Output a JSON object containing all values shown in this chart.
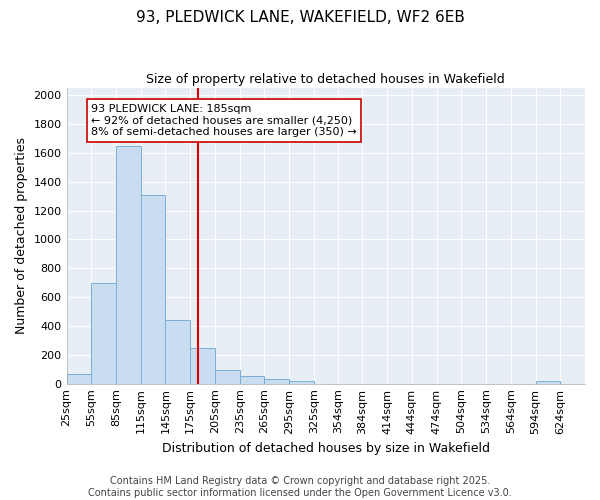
{
  "title_line1": "93, PLEDWICK LANE, WAKEFIELD, WF2 6EB",
  "title_line2": "Size of property relative to detached houses in Wakefield",
  "xlabel": "Distribution of detached houses by size in Wakefield",
  "ylabel": "Number of detached properties",
  "bar_color": "#c9ddf0",
  "bar_edge_color": "#7bafd4",
  "fig_background": "#ffffff",
  "plot_background": "#e8eef6",
  "grid_color": "#ffffff",
  "vline_x": 185,
  "vline_color": "#dd0000",
  "annotation_text": "93 PLEDWICK LANE: 185sqm\n← 92% of detached houses are smaller (4,250)\n8% of semi-detached houses are larger (350) →",
  "annotation_box_facecolor": "#ffffff",
  "annotation_box_edge": "#cc0000",
  "bins": [
    25,
    55,
    85,
    115,
    145,
    175,
    205,
    235,
    265,
    295,
    325,
    354,
    384,
    414,
    444,
    474,
    504,
    534,
    564,
    594,
    624
  ],
  "bin_labels": [
    "25sqm",
    "55sqm",
    "85sqm",
    "115sqm",
    "145sqm",
    "175sqm",
    "205sqm",
    "235sqm",
    "265sqm",
    "295sqm",
    "325sqm",
    "354sqm",
    "384sqm",
    "414sqm",
    "444sqm",
    "474sqm",
    "504sqm",
    "534sqm",
    "564sqm",
    "594sqm",
    "624sqm"
  ],
  "counts": [
    65,
    700,
    1650,
    1310,
    440,
    250,
    95,
    50,
    30,
    20,
    0,
    0,
    0,
    0,
    0,
    0,
    0,
    0,
    0,
    20
  ],
  "ylim": [
    0,
    2050
  ],
  "yticks": [
    0,
    200,
    400,
    600,
    800,
    1000,
    1200,
    1400,
    1600,
    1800,
    2000
  ],
  "footer_line1": "Contains HM Land Registry data © Crown copyright and database right 2025.",
  "footer_line2": "Contains public sector information licensed under the Open Government Licence v3.0.",
  "title_fontsize": 11,
  "subtitle_fontsize": 9,
  "axis_label_fontsize": 9,
  "tick_fontsize": 8,
  "footer_fontsize": 7,
  "annot_fontsize": 8
}
